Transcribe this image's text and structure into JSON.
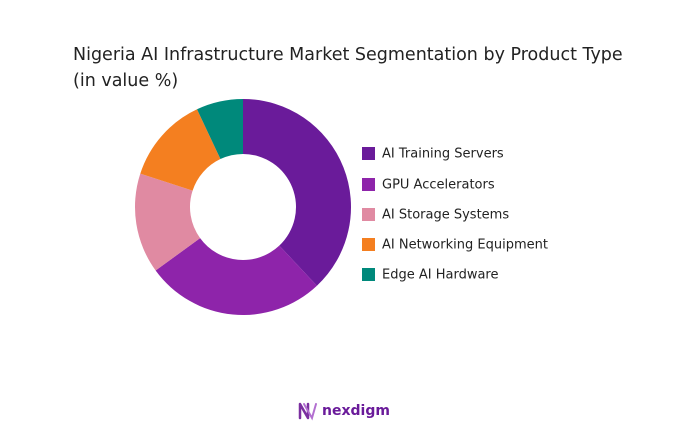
{
  "chart_data": {
    "type": "donut",
    "title": "Nigeria AI Infrastructure Market Segmentation by Product Type (in value %)",
    "categories": [
      "AI Training Servers",
      "GPU Accelerators",
      "AI Storage Systems",
      "AI Networking Equipment",
      "Edge AI Hardware"
    ],
    "values": [
      38,
      27,
      15,
      13,
      7
    ],
    "colors": [
      "#6a1b9a",
      "#8e24aa",
      "#e08aa2",
      "#f47f20",
      "#00897b"
    ],
    "legend": "right",
    "brand": "nexdigm"
  }
}
